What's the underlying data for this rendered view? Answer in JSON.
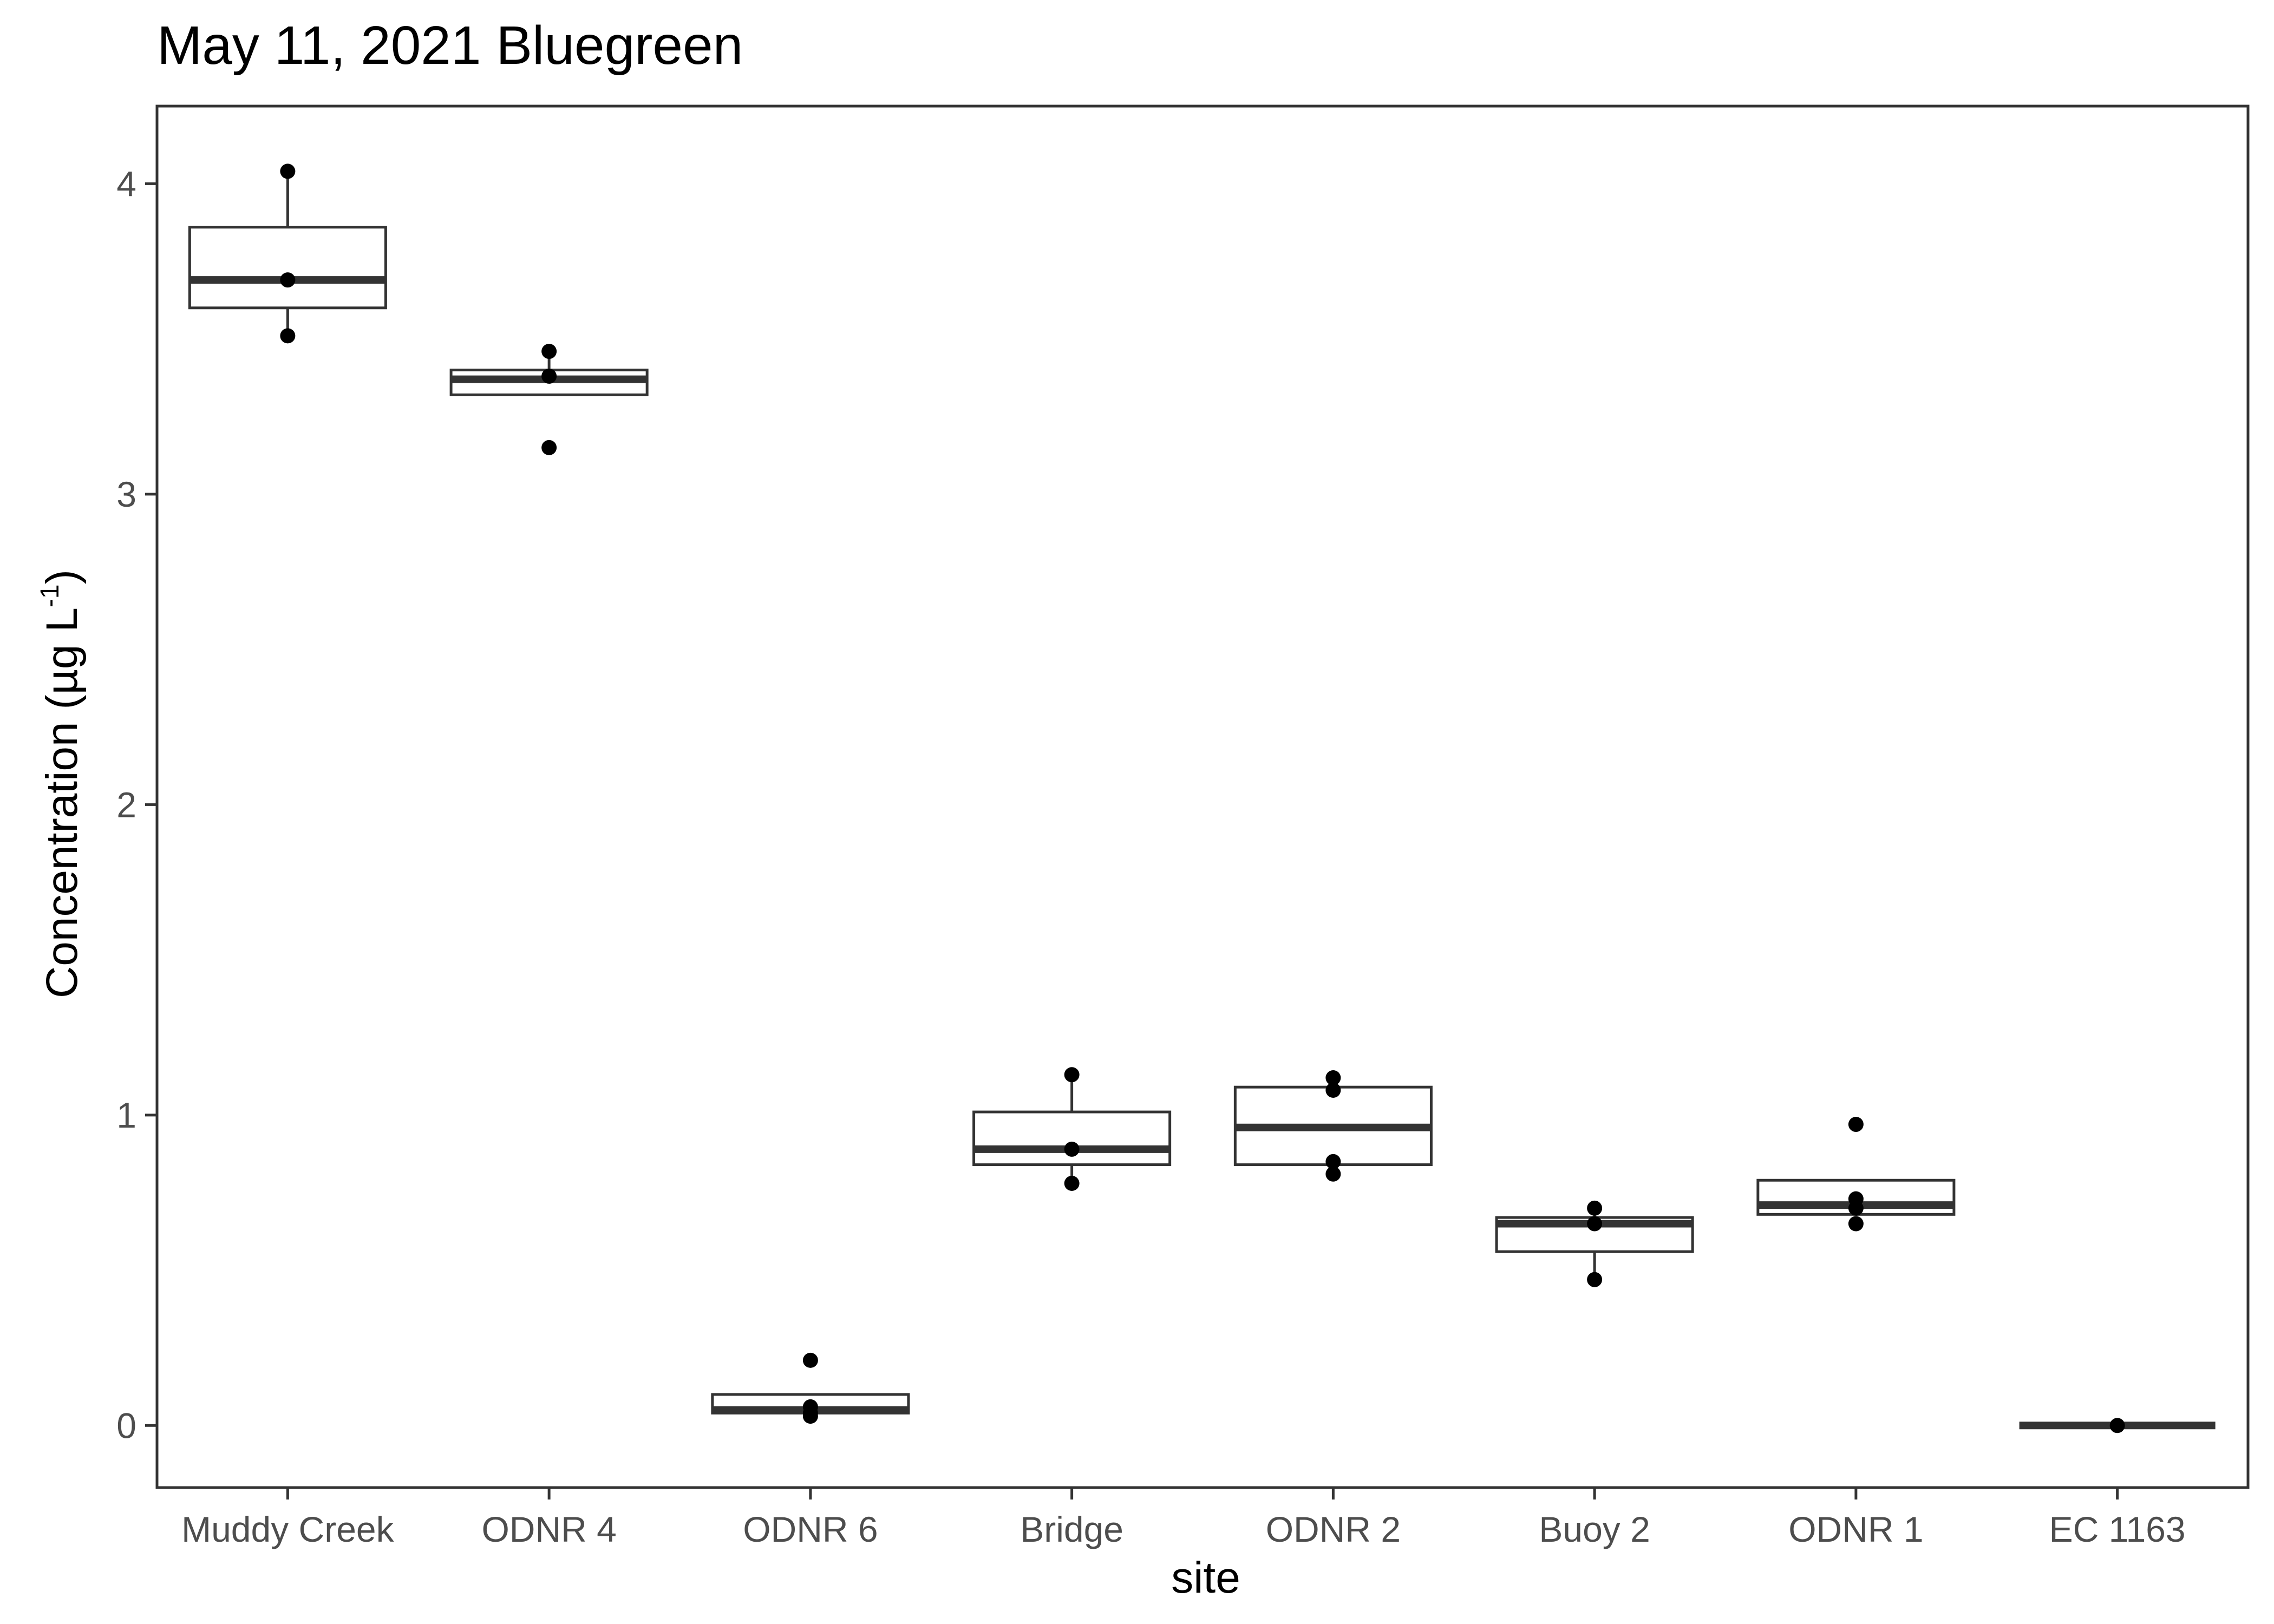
{
  "chart_data": {
    "type": "box",
    "title": "May 11, 2021 Bluegreen",
    "xlabel": "site",
    "ylabel": {
      "main": "Concentration (µg L",
      "superscript": "-1",
      "close": ")"
    },
    "ylim": [
      -0.2,
      4.25
    ],
    "yticks": [
      "0",
      "1",
      "2",
      "3",
      "4"
    ],
    "grid": false,
    "categories": [
      "Muddy Creek",
      "ODNR 4",
      "ODNR 6",
      "Bridge",
      "ODNR 2",
      "Buoy 2",
      "ODNR 1",
      "EC 1163"
    ],
    "boxes": [
      {
        "site": "Muddy Creek",
        "lower_whisker": 3.51,
        "q1": 3.6,
        "median": 3.69,
        "q3": 3.86,
        "upper_whisker": 4.04,
        "points": [
          4.04,
          3.69,
          3.51
        ]
      },
      {
        "site": "ODNR 4",
        "lower_whisker": 3.32,
        "q1": 3.32,
        "median": 3.37,
        "q3": 3.4,
        "upper_whisker": 3.46,
        "points": [
          3.46,
          3.38,
          3.15
        ]
      },
      {
        "site": "ODNR 6",
        "lower_whisker": 0.03,
        "q1": 0.04,
        "median": 0.05,
        "q3": 0.1,
        "upper_whisker": 0.1,
        "points": [
          0.21,
          0.06,
          0.04,
          0.03
        ]
      },
      {
        "site": "Bridge",
        "lower_whisker": 0.78,
        "q1": 0.84,
        "median": 0.89,
        "q3": 1.01,
        "upper_whisker": 1.13,
        "points": [
          1.13,
          0.89,
          0.78
        ]
      },
      {
        "site": "ODNR 2",
        "lower_whisker": 0.81,
        "q1": 0.84,
        "median": 0.96,
        "q3": 1.09,
        "upper_whisker": 1.12,
        "points": [
          1.12,
          1.08,
          0.85,
          0.81
        ]
      },
      {
        "site": "Buoy 2",
        "lower_whisker": 0.47,
        "q1": 0.56,
        "median": 0.65,
        "q3": 0.67,
        "upper_whisker": 0.7,
        "points": [
          0.7,
          0.65,
          0.47
        ]
      },
      {
        "site": "ODNR 1",
        "lower_whisker": 0.68,
        "q1": 0.68,
        "median": 0.71,
        "q3": 0.79,
        "upper_whisker": 0.79,
        "points": [
          0.97,
          0.73,
          0.7,
          0.65
        ]
      },
      {
        "site": "EC 1163",
        "lower_whisker": 0.0,
        "q1": 0.0,
        "median": 0.0,
        "q3": 0.0,
        "upper_whisker": 0.0,
        "points": [
          0.0
        ]
      }
    ],
    "colors": {
      "box_stroke": "#333333",
      "box_fill": "#ffffff",
      "points": "#000000",
      "panel_border": "#333333",
      "tick_text": "#4d4d4d"
    }
  }
}
